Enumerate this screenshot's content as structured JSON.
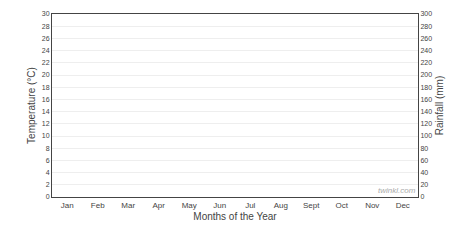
{
  "chart_data": {
    "type": "line",
    "categories": [
      "Jan",
      "Feb",
      "Mar",
      "Apr",
      "May",
      "Jun",
      "Jul",
      "Aug",
      "Sept",
      "Oct",
      "Nov",
      "Dec"
    ],
    "x_label": "Months of the Year",
    "y_label": "Temperature (°C)",
    "y2_label": "Rainfall (mm)",
    "ylim": [
      0,
      30
    ],
    "yticks": [
      0,
      2,
      4,
      6,
      8,
      10,
      12,
      14,
      16,
      18,
      20,
      22,
      24,
      26,
      28,
      30
    ],
    "y2lim": [
      0,
      300
    ],
    "y2ticks": [
      0,
      20,
      40,
      60,
      80,
      100,
      120,
      140,
      160,
      180,
      200,
      220,
      240,
      260,
      280,
      300
    ],
    "grid": true,
    "annotations": [
      "twinkl.com"
    ]
  }
}
